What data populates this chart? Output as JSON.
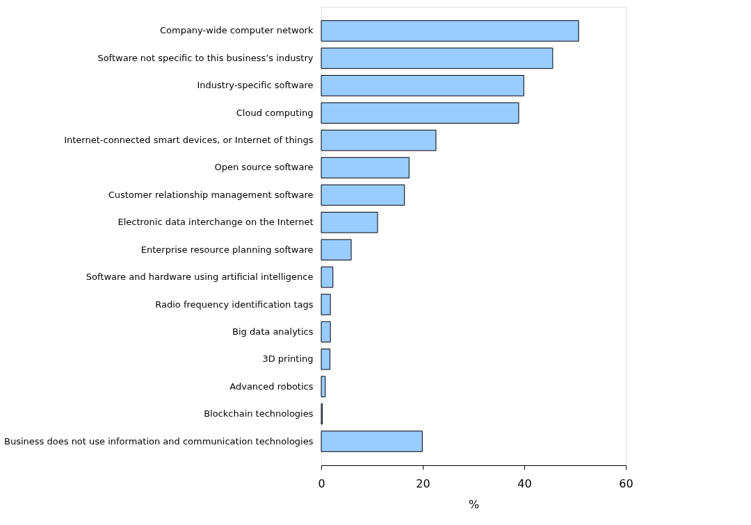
{
  "chart_data": {
    "type": "bar",
    "orientation": "horizontal",
    "xlabel": "%",
    "categories": [
      "Company-wide computer network",
      "Software not specific to this business’s industry",
      "Industry-specific software",
      "Cloud computing",
      "Internet-connected smart devices, or Internet of things",
      "Open source software",
      "Customer relationship management software",
      "Electronic data interchange on the Internet",
      "Enterprise resource planning software",
      "Software and hardware using artificial intelligence",
      "Radio frequency identification tags",
      "Big data analytics",
      "3D printing",
      "Advanced robotics",
      "Blockchain technologies",
      "Business does not use information and communication technologies"
    ],
    "values": [
      50.7,
      45.6,
      39.9,
      38.9,
      22.6,
      17.3,
      16.4,
      11.1,
      5.9,
      2.3,
      1.8,
      1.8,
      1.7,
      0.8,
      0.2,
      19.9
    ],
    "color": "#99ccff",
    "xlim": [
      0,
      60
    ],
    "xticks": [
      0,
      20,
      40,
      60
    ],
    "grid": false
  }
}
